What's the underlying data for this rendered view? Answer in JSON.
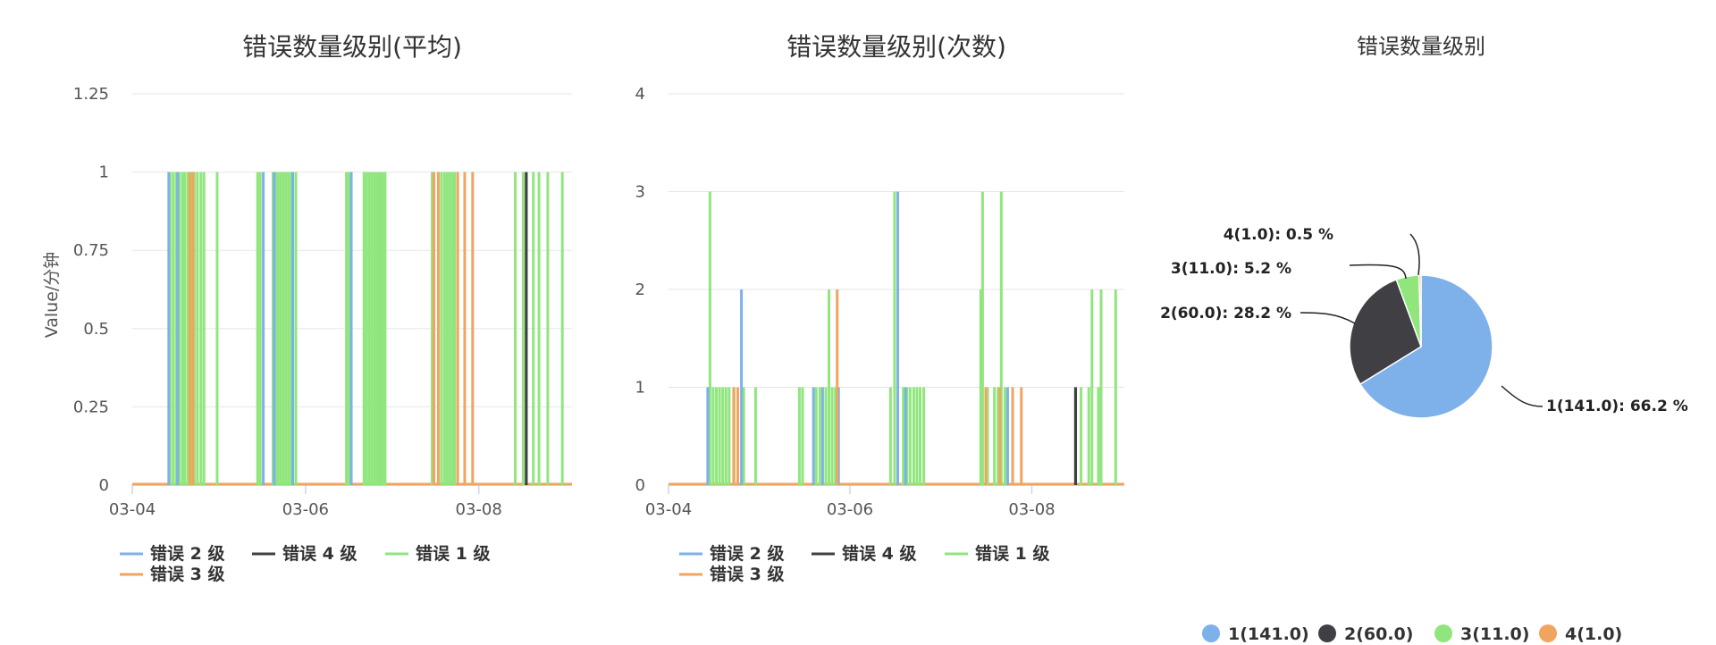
{
  "colors": {
    "level1": "#90e67c",
    "level2": "#7eb0ea",
    "level3": "#f1a45f",
    "level4": "#3f3f44"
  },
  "chart_data": [
    {
      "type": "bar",
      "title": "错误数量级别(平均)",
      "ylabel": "Value/分钟",
      "ylim": [
        0,
        1.25
      ],
      "yticks": [
        "0",
        "0.25",
        "0.5",
        "0.75",
        "1",
        "1.25"
      ],
      "xlim": [
        0,
        100
      ],
      "xticks": [
        {
          "pos": 0,
          "label": "03-04"
        },
        {
          "pos": 39.4,
          "label": "03-06"
        },
        {
          "pos": 78.8,
          "label": "03-08"
        }
      ],
      "legend": [
        "错误 2 级",
        "错误 4 级",
        "错误 1 级",
        "错误 3 级"
      ],
      "series": [
        {
          "name": "错误 1 级",
          "color_key": "level1",
          "points": [
            [
              8.6,
              1
            ],
            [
              9.3,
              1
            ],
            [
              10,
              1
            ],
            [
              10.7,
              1
            ],
            [
              11.4,
              1
            ],
            [
              12,
              1
            ],
            [
              12.7,
              1
            ],
            [
              13.4,
              1
            ],
            [
              14.1,
              1
            ],
            [
              14.8,
              1
            ],
            [
              15.6,
              1
            ],
            [
              16.3,
              1
            ],
            [
              19.3,
              1
            ],
            [
              28.5,
              1
            ],
            [
              29.1,
              1
            ],
            [
              32,
              1
            ],
            [
              32.6,
              1
            ],
            [
              33.2,
              1
            ],
            [
              33.8,
              1
            ],
            [
              34.4,
              1
            ],
            [
              35,
              1
            ],
            [
              35.6,
              1
            ],
            [
              36.2,
              1
            ],
            [
              37.2,
              1
            ],
            [
              48.7,
              1
            ],
            [
              49.3,
              1
            ],
            [
              52.7,
              1
            ],
            [
              53.3,
              1
            ],
            [
              53.9,
              1
            ],
            [
              54.5,
              1
            ],
            [
              55.1,
              1
            ],
            [
              55.7,
              1
            ],
            [
              56.3,
              1
            ],
            [
              56.9,
              1
            ],
            [
              57.5,
              1
            ],
            [
              68.2,
              1
            ],
            [
              70.3,
              1
            ],
            [
              71,
              1
            ],
            [
              71.6,
              1
            ],
            [
              72.2,
              1
            ],
            [
              72.8,
              1
            ],
            [
              73.3,
              1
            ],
            [
              87.1,
              1
            ],
            [
              88.9,
              1
            ],
            [
              91.2,
              1
            ],
            [
              92.5,
              1
            ],
            [
              94.5,
              1
            ],
            [
              97.8,
              1
            ]
          ]
        },
        {
          "name": "错误 2 级",
          "color_key": "level2",
          "points": [
            [
              8.3,
              1
            ],
            [
              10.3,
              1
            ],
            [
              29.8,
              1
            ],
            [
              32.3,
              1
            ],
            [
              36.5,
              1
            ],
            [
              49.8,
              1
            ]
          ]
        },
        {
          "name": "错误 3 级",
          "color_key": "level3",
          "points": [
            [
              13.1,
              1
            ],
            [
              13.8,
              1
            ],
            [
              68.6,
              1
            ],
            [
              69.6,
              1
            ],
            [
              74,
              1
            ],
            [
              75.6,
              1
            ],
            [
              77.4,
              1
            ]
          ]
        },
        {
          "name": "错误 4 级",
          "color_key": "level4",
          "points": [
            [
              89.6,
              1
            ]
          ]
        }
      ]
    },
    {
      "type": "bar",
      "title": "错误数量级别(次数)",
      "ylabel": "Value/分钟",
      "ylim": [
        0,
        4
      ],
      "yticks": [
        "0",
        "1",
        "2",
        "3",
        "4"
      ],
      "xlim": [
        0,
        100
      ],
      "xticks": [
        {
          "pos": 0,
          "label": "03-04"
        },
        {
          "pos": 39.8,
          "label": "03-06"
        },
        {
          "pos": 79.7,
          "label": "03-08"
        }
      ],
      "legend": [
        "错误 2 级",
        "错误 4 级",
        "错误 1 级",
        "错误 3 级"
      ],
      "series": [
        {
          "name": "错误 1 级",
          "color_key": "level1",
          "points": [
            [
              9.1,
              3
            ],
            [
              9.8,
              1
            ],
            [
              10.5,
              1
            ],
            [
              11.2,
              1
            ],
            [
              11.9,
              1
            ],
            [
              12.6,
              1
            ],
            [
              13.3,
              1
            ],
            [
              14.4,
              1
            ],
            [
              16.5,
              1
            ],
            [
              19.1,
              1
            ],
            [
              28.7,
              1
            ],
            [
              29.4,
              1
            ],
            [
              32.4,
              1
            ],
            [
              33.2,
              1
            ],
            [
              34.5,
              1
            ],
            [
              35.2,
              2
            ],
            [
              35.9,
              1
            ],
            [
              36.6,
              1
            ],
            [
              48.7,
              1
            ],
            [
              49.6,
              3
            ],
            [
              51.5,
              1
            ],
            [
              52.3,
              1
            ],
            [
              53,
              1
            ],
            [
              53.8,
              1
            ],
            [
              54.5,
              1
            ],
            [
              55.2,
              1
            ],
            [
              56,
              1
            ],
            [
              68.5,
              2
            ],
            [
              68.9,
              3
            ],
            [
              70,
              1
            ],
            [
              71.5,
              1
            ],
            [
              72.3,
              1
            ],
            [
              73,
              3
            ],
            [
              73.8,
              1
            ],
            [
              90.5,
              1
            ],
            [
              92.2,
              1
            ],
            [
              92.9,
              2
            ],
            [
              94.3,
              1
            ],
            [
              94.9,
              2
            ],
            [
              98.1,
              2
            ]
          ]
        },
        {
          "name": "错误 2 级",
          "color_key": "level2",
          "points": [
            [
              8.6,
              1
            ],
            [
              16,
              2
            ],
            [
              31.8,
              1
            ],
            [
              33.8,
              1
            ],
            [
              37.3,
              1
            ],
            [
              50.3,
              3
            ],
            [
              52,
              1
            ],
            [
              74.4,
              1
            ]
          ]
        },
        {
          "name": "错误 3 级",
          "color_key": "level3",
          "points": [
            [
              14.3,
              1
            ],
            [
              15.2,
              1
            ],
            [
              37,
              2
            ],
            [
              69.6,
              1
            ],
            [
              72.7,
              1
            ],
            [
              75.5,
              1
            ],
            [
              77.4,
              1
            ]
          ]
        },
        {
          "name": "错误 4 级",
          "color_key": "level4",
          "points": [
            [
              89.3,
              1
            ]
          ]
        }
      ]
    },
    {
      "type": "pie",
      "title": "错误数量级别",
      "slices": [
        {
          "name": "1(141.0)",
          "value": 141.0,
          "percent": 66.2,
          "label": "1(141.0): 66.2 %",
          "color_key": "level2"
        },
        {
          "name": "2(60.0)",
          "value": 60.0,
          "percent": 28.2,
          "label": "2(60.0): 28.2 %",
          "color_key": "level4"
        },
        {
          "name": "3(11.0)",
          "value": 11.0,
          "percent": 5.2,
          "label": "3(11.0): 5.2 %",
          "color_key": "level1"
        },
        {
          "name": "4(1.0)",
          "value": 1.0,
          "percent": 0.5,
          "label": "4(1.0): 0.5 %",
          "color_key": "level3"
        }
      ],
      "legend": [
        "1(141.0)",
        "2(60.0)",
        "3(11.0)",
        "4(1.0)"
      ]
    }
  ]
}
